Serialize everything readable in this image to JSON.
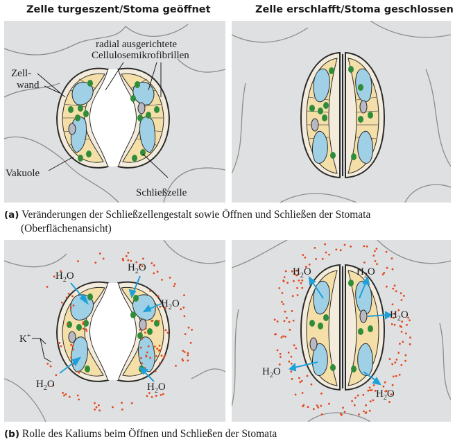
{
  "headings": {
    "left": "Zelle turgeszent/Stoma geöffnet",
    "right": "Zelle erschlafft/Stoma geschlossen"
  },
  "labels_a": {
    "radial_line1": "radial ausgerichtete",
    "radial_line2": "Cellulosemikrofibrillen",
    "zellwand_line1": "Zell-",
    "zellwand_line2": "wand",
    "vakuole": "Vakuole",
    "schliesszelle": "Schließzelle"
  },
  "caption_a": {
    "marker": "(a)",
    "line1": "Veränderungen der Schließzellengestalt sowie Öffnen und Schließen der Stomata",
    "line2": "(Oberflächenansicht)"
  },
  "labels_b": {
    "water": "H",
    "water_sub": "2",
    "water_tail": "O",
    "ion": "K",
    "ion_sup": "+"
  },
  "caption_b": {
    "marker": "(b)",
    "line1": "Rolle des Kaliums beim Öffnen und Schließen der Stomata"
  },
  "colors": {
    "panel_bg": "#dfe0e2",
    "cell_wall": "#f3ecdc",
    "cytoplasm": "#f5dfa8",
    "vacuole": "#9fd0e6",
    "chloroplast": "#2f8c3a",
    "nucleus": "#b9b9c6",
    "potassium": "#e2481c",
    "arrow": "#1ea0d8",
    "outline": "#2a2a2a",
    "cell_lines": "#8c8c8c"
  }
}
